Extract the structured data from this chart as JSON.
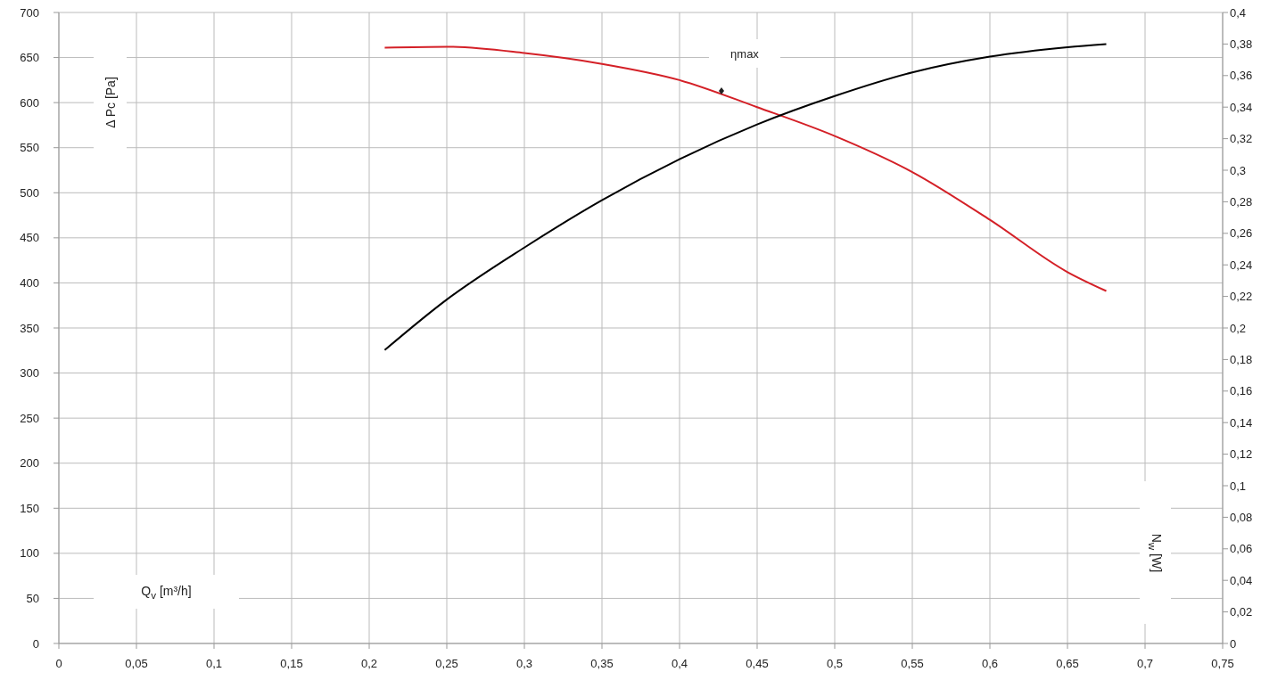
{
  "chart_data": {
    "type": "line",
    "xlabel": "Q$_{v}$ [m³/h]",
    "ylabel": "Δ Pc [Pa]",
    "y2label": "N$_{w}$ [W]",
    "series": [
      {
        "color": "#d42027",
        "x": [
          0.21,
          0.25,
          0.3,
          0.35,
          0.4,
          0.45,
          0.5,
          0.55,
          0.6,
          0.65,
          0.675
        ],
        "values": [
          661,
          662,
          655,
          643,
          625,
          595,
          563,
          523,
          470,
          412,
          391
        ]
      },
      {
        "color": "#000000",
        "axis": "y2",
        "x": [
          0.21,
          0.25,
          0.3,
          0.35,
          0.4,
          0.45,
          0.5,
          0.55,
          0.6,
          0.65,
          0.675
        ],
        "values": [
          0.186,
          0.218,
          0.251,
          0.281,
          0.307,
          0.329,
          0.347,
          0.362,
          0.372,
          0.378,
          0.38
        ]
      }
    ],
    "annotations": [
      {
        "text": "ηmax",
        "x": 0.427,
        "y": 613
      }
    ],
    "xlim": [
      0,
      0.75
    ],
    "xticks": [
      0,
      {
        "value": 0.05,
        "label": "0,05"
      },
      {
        "value": 0.1,
        "label": "0,1"
      },
      {
        "value": 0.15,
        "label": "0,15"
      },
      {
        "value": 0.2,
        "label": "0,2"
      },
      {
        "value": 0.25,
        "label": "0,25"
      },
      {
        "value": 0.3,
        "label": "0,3"
      },
      {
        "value": 0.35,
        "label": "0,35"
      },
      {
        "value": 0.4,
        "label": "0,4"
      },
      {
        "value": 0.45,
        "label": "0,45"
      },
      {
        "value": 0.5,
        "label": "0,5"
      },
      {
        "value": 0.55,
        "label": "0,55"
      },
      {
        "value": 0.6,
        "label": "0,6"
      },
      {
        "value": 0.65,
        "label": "0,65"
      },
      {
        "value": 0.7,
        "label": "0,7"
      },
      {
        "value": 0.75,
        "label": "0,75"
      }
    ],
    "ylim": [
      0,
      700
    ],
    "yticks": [
      0,
      50,
      100,
      150,
      200,
      250,
      300,
      350,
      400,
      450,
      500,
      550,
      600,
      650,
      700
    ],
    "y2lim": [
      0,
      0.4
    ],
    "y2ticks": [
      0,
      {
        "value": 0.02,
        "label": "0,02"
      },
      {
        "value": 0.04,
        "label": "0,04"
      },
      {
        "value": 0.06,
        "label": "0,06"
      },
      {
        "value": 0.08,
        "label": "0,08"
      },
      {
        "value": 0.1,
        "label": "0,1"
      },
      {
        "value": 0.12,
        "label": "0,12"
      },
      {
        "value": 0.14,
        "label": "0,14"
      },
      {
        "value": 0.16,
        "label": "0,16"
      },
      {
        "value": 0.18,
        "label": "0,18"
      },
      {
        "value": 0.2,
        "label": "0,2"
      },
      {
        "value": 0.22,
        "label": "0,22"
      },
      {
        "value": 0.24,
        "label": "0,24"
      },
      {
        "value": 0.26,
        "label": "0,26"
      },
      {
        "value": 0.28,
        "label": "0,28"
      },
      {
        "value": 0.3,
        "label": "0,3"
      },
      {
        "value": 0.32,
        "label": "0,32"
      },
      {
        "value": 0.34,
        "label": "0,34"
      },
      {
        "value": 0.36,
        "label": "0,36"
      },
      {
        "value": 0.38,
        "label": "0,38"
      },
      {
        "value": 0.4,
        "label": "0,4"
      }
    ],
    "grid": true,
    "legend": false,
    "marker": "none",
    "line_style": "solid"
  }
}
